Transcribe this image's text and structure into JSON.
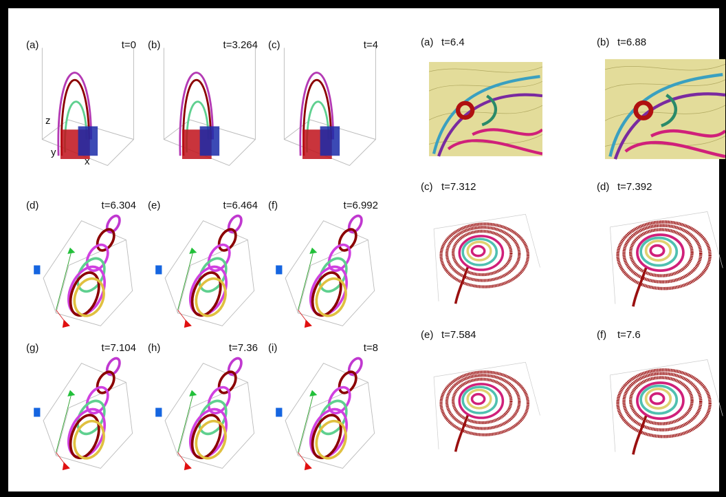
{
  "left_figure": {
    "panels": [
      {
        "label": "(a)",
        "time": "t=0"
      },
      {
        "label": "(b)",
        "time": "t=3.264"
      },
      {
        "label": "(c)",
        "time": "t=4"
      },
      {
        "label": "(d)",
        "time": "t=6.304"
      },
      {
        "label": "(e)",
        "time": "t=6.464"
      },
      {
        "label": "(f)",
        "time": "t=6.992"
      },
      {
        "label": "(g)",
        "time": "t=7.104"
      },
      {
        "label": "(h)",
        "time": "t=7.36"
      },
      {
        "label": "(i)",
        "time": "t=8"
      }
    ],
    "axis_labels": [
      "z",
      "y",
      "x"
    ]
  },
  "right_figure": {
    "panels": [
      {
        "label": "(a)",
        "time": "t=6.4"
      },
      {
        "label": "(b)",
        "time": "t=6.88"
      },
      {
        "label": "(c)",
        "time": "t=7.312"
      },
      {
        "label": "(d)",
        "time": "t=7.392"
      },
      {
        "label": "(e)",
        "time": "t=7.584"
      },
      {
        "label": "(f)",
        "time": "t=7.6"
      }
    ]
  }
}
